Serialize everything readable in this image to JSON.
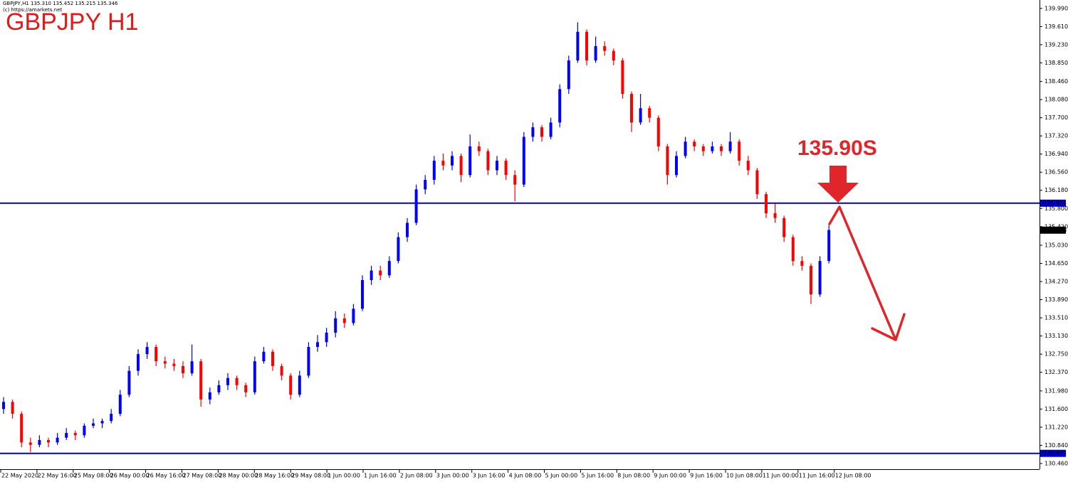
{
  "chart_data": {
    "type": "candlestick",
    "header": "GBPJPY,H1  135.310 135.452 135.215 135.346",
    "copyright": "(c) https://amarkets.net",
    "title": "GBPJPY H1",
    "annotation": "135.90S",
    "up_color": "#0000ff",
    "down_color": "#ff0000",
    "ylim": [
      130.34,
      140.166
    ],
    "yticks": [
      {
        "value": 139.99,
        "label": "139.990"
      },
      {
        "value": 139.61,
        "label": "139.610"
      },
      {
        "value": 139.23,
        "label": "139.230"
      },
      {
        "value": 138.85,
        "label": "138.850"
      },
      {
        "value": 138.46,
        "label": "138.460"
      },
      {
        "value": 138.08,
        "label": "138.080"
      },
      {
        "value": 137.7,
        "label": "137.700"
      },
      {
        "value": 137.32,
        "label": "137.320"
      },
      {
        "value": 136.94,
        "label": "136.940"
      },
      {
        "value": 136.56,
        "label": "136.560"
      },
      {
        "value": 136.18,
        "label": "136.180"
      },
      {
        "value": 135.8,
        "label": "135.800"
      },
      {
        "value": 135.42,
        "label": "135.420"
      },
      {
        "value": 135.03,
        "label": "135.030"
      },
      {
        "value": 134.65,
        "label": "134.650"
      },
      {
        "value": 134.27,
        "label": "134.270"
      },
      {
        "value": 133.89,
        "label": "133.890"
      },
      {
        "value": 133.51,
        "label": "133.510"
      },
      {
        "value": 133.13,
        "label": "133.130"
      },
      {
        "value": 132.75,
        "label": "132.750"
      },
      {
        "value": 132.37,
        "label": "132.370"
      },
      {
        "value": 131.98,
        "label": "131.980"
      },
      {
        "value": 131.6,
        "label": "131.600"
      },
      {
        "value": 131.22,
        "label": "131.220"
      },
      {
        "value": 130.84,
        "label": "130.840"
      },
      {
        "value": 130.46,
        "label": "130.460"
      }
    ],
    "x_labels": [
      "22 May 2020",
      "22 May 16:00",
      "25 May 08:00",
      "26 May 00:00",
      "26 May 16:00",
      "27 May 08:00",
      "28 May 00:00",
      "28 May 16:00",
      "29 May 08:00",
      "1 Jun 00:00",
      "1 Jun 16:00",
      "2 Jun 08:00",
      "3 Jun 00:00",
      "3 Jun 16:00",
      "4 Jun 08:00",
      "5 Jun 00:00",
      "5 Jun 16:00",
      "8 Jun 08:00",
      "9 Jun 00:00",
      "9 Jun 16:00",
      "10 Jun 08:00",
      "11 Jun 00:00",
      "11 Jun 16:00",
      "12 Jun 08:00"
    ],
    "levels": [
      {
        "value": 135.911,
        "color": "#0000cc"
      },
      {
        "value": 130.672,
        "color": "#0000cc"
      }
    ],
    "current_price": {
      "value": 135.346,
      "label": "135.346"
    },
    "candles": [
      [
        131.6,
        131.85,
        131.5,
        131.75
      ],
      [
        131.75,
        131.8,
        131.4,
        131.5
      ],
      [
        131.5,
        131.55,
        130.8,
        130.9
      ],
      [
        130.9,
        131.0,
        130.7,
        130.85
      ],
      [
        130.85,
        131.05,
        130.8,
        130.95
      ],
      [
        130.95,
        131.0,
        130.8,
        130.9
      ],
      [
        130.9,
        131.1,
        130.85,
        131.0
      ],
      [
        131.0,
        131.2,
        130.95,
        131.1
      ],
      [
        131.1,
        131.15,
        130.95,
        131.05
      ],
      [
        131.05,
        131.3,
        131.0,
        131.25
      ],
      [
        131.25,
        131.4,
        131.2,
        131.3
      ],
      [
        131.3,
        131.4,
        131.2,
        131.35
      ],
      [
        131.35,
        131.6,
        131.3,
        131.5
      ],
      [
        131.5,
        132.0,
        131.45,
        131.9
      ],
      [
        131.9,
        132.5,
        131.85,
        132.4
      ],
      [
        132.4,
        132.85,
        132.3,
        132.75
      ],
      [
        132.75,
        133.0,
        132.65,
        132.9
      ],
      [
        132.9,
        132.95,
        132.5,
        132.6
      ],
      [
        132.6,
        132.7,
        132.45,
        132.55
      ],
      [
        132.55,
        132.65,
        132.4,
        132.5
      ],
      [
        132.5,
        132.6,
        132.25,
        132.35
      ],
      [
        132.35,
        132.95,
        132.3,
        132.6
      ],
      [
        132.6,
        132.65,
        131.65,
        131.8
      ],
      [
        131.8,
        132.05,
        131.7,
        131.95
      ],
      [
        131.95,
        132.2,
        131.9,
        132.1
      ],
      [
        132.1,
        132.35,
        132.0,
        132.25
      ],
      [
        132.25,
        132.3,
        132.0,
        132.1
      ],
      [
        132.1,
        132.15,
        131.85,
        131.95
      ],
      [
        131.95,
        132.7,
        131.9,
        132.6
      ],
      [
        132.6,
        132.9,
        132.55,
        132.8
      ],
      [
        132.8,
        132.85,
        132.4,
        132.5
      ],
      [
        132.5,
        132.55,
        132.2,
        132.3
      ],
      [
        132.3,
        132.35,
        131.8,
        131.9
      ],
      [
        131.9,
        132.4,
        131.85,
        132.3
      ],
      [
        132.3,
        133.0,
        132.25,
        132.9
      ],
      [
        132.9,
        133.15,
        132.8,
        133.0
      ],
      [
        133.0,
        133.3,
        132.9,
        133.2
      ],
      [
        133.2,
        133.65,
        133.1,
        133.5
      ],
      [
        133.5,
        133.6,
        133.3,
        133.4
      ],
      [
        133.4,
        133.8,
        133.35,
        133.7
      ],
      [
        133.7,
        134.4,
        133.65,
        134.3
      ],
      [
        134.3,
        134.6,
        134.2,
        134.5
      ],
      [
        134.5,
        134.6,
        134.3,
        134.4
      ],
      [
        134.4,
        134.8,
        134.35,
        134.7
      ],
      [
        134.7,
        135.3,
        134.65,
        135.2
      ],
      [
        135.2,
        135.6,
        135.1,
        135.5
      ],
      [
        135.5,
        136.3,
        135.45,
        136.2
      ],
      [
        136.2,
        136.5,
        136.1,
        136.4
      ],
      [
        136.4,
        136.9,
        136.3,
        136.8
      ],
      [
        136.8,
        136.95,
        136.6,
        136.7
      ],
      [
        136.7,
        137.0,
        136.6,
        136.9
      ],
      [
        136.9,
        136.95,
        136.35,
        136.5
      ],
      [
        136.5,
        137.35,
        136.45,
        137.1
      ],
      [
        137.1,
        137.2,
        136.9,
        137.0
      ],
      [
        137.0,
        137.05,
        136.5,
        136.6
      ],
      [
        136.6,
        136.9,
        136.5,
        136.8
      ],
      [
        136.8,
        136.85,
        136.4,
        136.5
      ],
      [
        136.5,
        136.6,
        135.95,
        136.3
      ],
      [
        136.3,
        137.4,
        136.25,
        137.3
      ],
      [
        137.3,
        137.6,
        137.2,
        137.5
      ],
      [
        137.5,
        137.55,
        137.2,
        137.3
      ],
      [
        137.3,
        137.7,
        137.25,
        137.6
      ],
      [
        137.6,
        138.4,
        137.5,
        138.3
      ],
      [
        138.3,
        139.0,
        138.2,
        138.9
      ],
      [
        138.9,
        139.7,
        138.85,
        139.5
      ],
      [
        139.5,
        139.55,
        138.8,
        138.9
      ],
      [
        138.9,
        139.4,
        138.85,
        139.2
      ],
      [
        139.2,
        139.3,
        139.0,
        139.1
      ],
      [
        139.1,
        139.15,
        138.8,
        138.9
      ],
      [
        138.9,
        138.95,
        138.1,
        138.2
      ],
      [
        138.2,
        138.25,
        137.4,
        137.6
      ],
      [
        137.6,
        138.2,
        137.55,
        137.9
      ],
      [
        137.9,
        137.95,
        137.6,
        137.7
      ],
      [
        137.7,
        137.75,
        137.0,
        137.1
      ],
      [
        137.1,
        137.15,
        136.3,
        136.5
      ],
      [
        136.5,
        137.0,
        136.45,
        136.9
      ],
      [
        136.9,
        137.3,
        136.85,
        137.2
      ],
      [
        137.2,
        137.25,
        137.0,
        137.1
      ],
      [
        137.1,
        137.15,
        136.9,
        137.0
      ],
      [
        137.0,
        137.2,
        136.95,
        137.1
      ],
      [
        137.1,
        137.15,
        136.9,
        137.0
      ],
      [
        137.0,
        137.4,
        136.95,
        137.2
      ],
      [
        137.2,
        137.25,
        136.7,
        136.8
      ],
      [
        136.8,
        136.9,
        136.5,
        136.6
      ],
      [
        136.6,
        136.65,
        136.0,
        136.1
      ],
      [
        136.1,
        136.15,
        135.6,
        135.7
      ],
      [
        135.7,
        135.9,
        135.5,
        135.6
      ],
      [
        135.6,
        135.65,
        135.1,
        135.2
      ],
      [
        135.2,
        135.25,
        134.6,
        134.7
      ],
      [
        134.7,
        134.8,
        134.5,
        134.6
      ],
      [
        134.6,
        134.65,
        133.8,
        134.0
      ],
      [
        134.0,
        134.8,
        133.95,
        134.7
      ],
      [
        134.7,
        135.45,
        134.65,
        135.35
      ]
    ]
  }
}
